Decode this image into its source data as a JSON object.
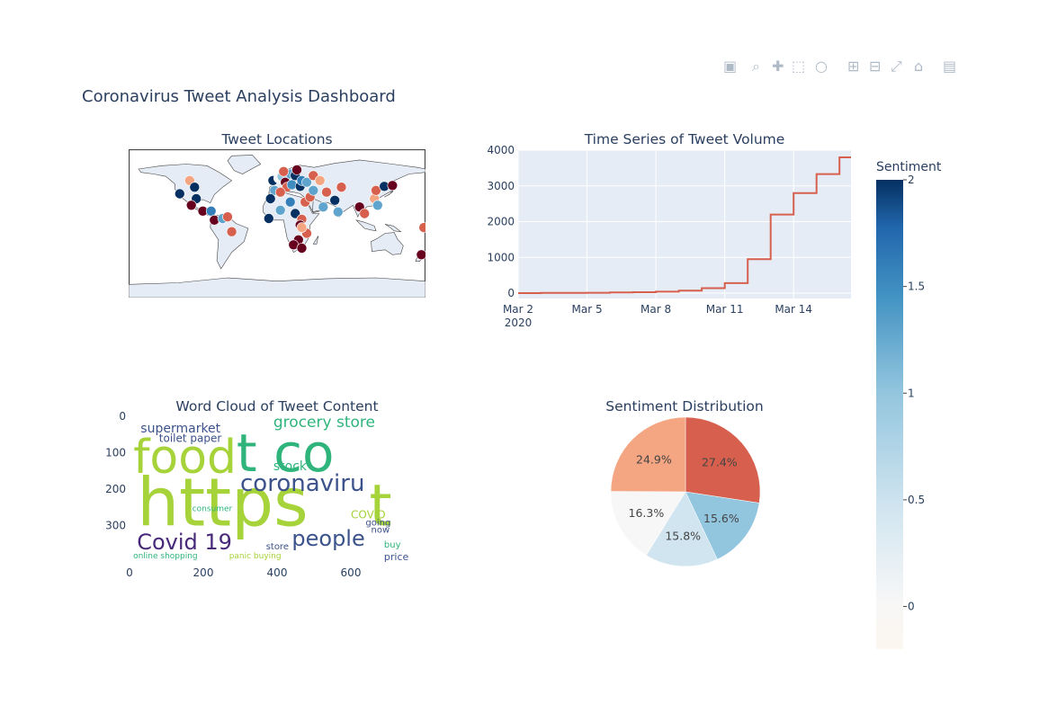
{
  "page_title": "Coronavirus Tweet Analysis Dashboard",
  "modebar": {
    "buttons": [
      "camera-icon",
      "zoom-icon",
      "pan-icon",
      "box-select-icon",
      "lasso-icon",
      "zoom-in-icon",
      "zoom-out-icon",
      "autoscale-icon",
      "reset-axes-icon",
      "plotly-logo-icon"
    ]
  },
  "colors": {
    "dark_red": "#67001f",
    "red": "#d6604d",
    "salmon": "#f4a582",
    "light": "#f7f7f7",
    "light_blue": "#d1e5f0",
    "mid_blue": "#92c5de",
    "blue": "#4393c3",
    "dark_blue": "#053061",
    "plot_bg": "#e5ecf6",
    "line": "#d6604d",
    "land": "#e5ecf6",
    "coast": "#444444"
  },
  "chart_data": [
    {
      "type": "scatter",
      "title": "Tweet Locations",
      "geo": "world",
      "points": [
        {
          "lon": -118,
          "lat": 36,
          "sentiment": 2
        },
        {
          "lon": -106,
          "lat": 52,
          "sentiment": 0.5
        },
        {
          "lon": -100,
          "lat": 44,
          "sentiment": 2
        },
        {
          "lon": -98,
          "lat": 30,
          "sentiment": 2
        },
        {
          "lon": -104,
          "lat": 22,
          "sentiment": 0
        },
        {
          "lon": -90,
          "lat": 15,
          "sentiment": 0
        },
        {
          "lon": -80,
          "lat": 15,
          "sentiment": 1.6
        },
        {
          "lon": -76,
          "lat": 4,
          "sentiment": 0
        },
        {
          "lon": -66,
          "lat": 6,
          "sentiment": 1.3
        },
        {
          "lon": -60,
          "lat": 8,
          "sentiment": 0.3
        },
        {
          "lon": -55,
          "lat": -10,
          "sentiment": 0.2
        },
        {
          "lon": -5,
          "lat": 52,
          "sentiment": 2
        },
        {
          "lon": -3,
          "lat": 40,
          "sentiment": 1.3
        },
        {
          "lon": 2,
          "lat": 55,
          "sentiment": 0.6
        },
        {
          "lon": 6,
          "lat": 57,
          "sentiment": 1
        },
        {
          "lon": 10,
          "lat": 50,
          "sentiment": 0
        },
        {
          "lon": 12,
          "lat": 44,
          "sentiment": 0.3
        },
        {
          "lon": 18,
          "lat": 47,
          "sentiment": 1.5
        },
        {
          "lon": 16,
          "lat": 60,
          "sentiment": 1.3
        },
        {
          "lon": 8,
          "lat": 63,
          "sentiment": 0.3
        },
        {
          "lon": 22,
          "lat": 58,
          "sentiment": 2
        },
        {
          "lon": 24,
          "lat": 65,
          "sentiment": 0
        },
        {
          "lon": 28,
          "lat": 45,
          "sentiment": 2
        },
        {
          "lon": 30,
          "lat": 52,
          "sentiment": 1.6
        },
        {
          "lon": 36,
          "lat": 50,
          "sentiment": 1.3
        },
        {
          "lon": 44,
          "lat": 58,
          "sentiment": 0.3
        },
        {
          "lon": 52,
          "lat": 52,
          "sentiment": 0.4
        },
        {
          "lon": 4,
          "lat": 38,
          "sentiment": 0.3
        },
        {
          "lon": -8,
          "lat": 30,
          "sentiment": 2
        },
        {
          "lon": 4,
          "lat": 16,
          "sentiment": 1.3
        },
        {
          "lon": -10,
          "lat": 6,
          "sentiment": 2
        },
        {
          "lon": 22,
          "lat": 12,
          "sentiment": 2
        },
        {
          "lon": 30,
          "lat": 5,
          "sentiment": 0.3
        },
        {
          "lon": 28,
          "lat": -2,
          "sentiment": 0
        },
        {
          "lon": 36,
          "lat": -12,
          "sentiment": 0.3
        },
        {
          "lon": 26,
          "lat": -20,
          "sentiment": 0
        },
        {
          "lon": 20,
          "lat": -26,
          "sentiment": 0
        },
        {
          "lon": 30,
          "lat": -30,
          "sentiment": 0
        },
        {
          "lon": 30,
          "lat": -5,
          "sentiment": 0.4
        },
        {
          "lon": 16,
          "lat": 26,
          "sentiment": 1.6
        },
        {
          "lon": 34,
          "lat": 26,
          "sentiment": 0.3
        },
        {
          "lon": 40,
          "lat": 32,
          "sentiment": 0.3
        },
        {
          "lon": 44,
          "lat": 40,
          "sentiment": 1.3
        },
        {
          "lon": 56,
          "lat": 20,
          "sentiment": 1.3
        },
        {
          "lon": 70,
          "lat": 28,
          "sentiment": 2
        },
        {
          "lon": 74,
          "lat": 14,
          "sentiment": 1.3
        },
        {
          "lon": 60,
          "lat": 38,
          "sentiment": 0.3
        },
        {
          "lon": 78,
          "lat": 44,
          "sentiment": 0.3
        },
        {
          "lon": 100,
          "lat": 20,
          "sentiment": 0
        },
        {
          "lon": 106,
          "lat": 12,
          "sentiment": 0.3
        },
        {
          "lon": 118,
          "lat": 30,
          "sentiment": 0.4
        },
        {
          "lon": 120,
          "lat": 40,
          "sentiment": 0.3
        },
        {
          "lon": 130,
          "lat": 45,
          "sentiment": 2
        },
        {
          "lon": 140,
          "lat": 46,
          "sentiment": 0
        },
        {
          "lon": 122,
          "lat": 22,
          "sentiment": 1.3
        },
        {
          "lon": 178,
          "lat": -5,
          "sentiment": 0.3
        },
        {
          "lon": 175,
          "lat": -38,
          "sentiment": 0
        }
      ]
    },
    {
      "type": "line",
      "title": "Time Series of Tweet Volume",
      "x_ticks": [
        "Mar 2",
        "Mar 5",
        "Mar 8",
        "Mar 11",
        "Mar 14"
      ],
      "x_year_label": "2020",
      "x_range": [
        "2020-03-02",
        "2020-03-16 12:00"
      ],
      "ylim": [
        -150,
        4000
      ],
      "y_ticks": [
        0,
        1000,
        2000,
        3000,
        4000
      ],
      "x": [
        "2020-03-02",
        "2020-03-03",
        "2020-03-04",
        "2020-03-05",
        "2020-03-06",
        "2020-03-07",
        "2020-03-08",
        "2020-03-09",
        "2020-03-10",
        "2020-03-11",
        "2020-03-12",
        "2020-03-13",
        "2020-03-14",
        "2020-03-15",
        "2020-03-16"
      ],
      "values": [
        2,
        5,
        8,
        12,
        18,
        25,
        40,
        70,
        140,
        280,
        950,
        2200,
        2800,
        3330,
        3800
      ],
      "line_shape": "hv",
      "grid": true
    },
    {
      "type": "heatmap",
      "title": "Word Cloud of Tweet Content",
      "x_ticks": [
        0,
        200,
        400,
        600
      ],
      "y_ticks": [
        0,
        100,
        200,
        300
      ],
      "x_range": [
        0,
        800
      ],
      "y_range": [
        0,
        400
      ],
      "words": [
        {
          "text": "https",
          "size": 1.0,
          "color": "#a6d23a"
        },
        {
          "text": "t co",
          "size": 0.95,
          "color": "#2fb47c"
        },
        {
          "text": "food",
          "size": 0.75,
          "color": "#a6d23a"
        },
        {
          "text": "t",
          "size": 0.9,
          "color": "#a6d23a"
        },
        {
          "text": "coronaviru",
          "size": 0.45,
          "color": "#3b528b"
        },
        {
          "text": "Covid 19",
          "size": 0.4,
          "color": "#482878"
        },
        {
          "text": "people",
          "size": 0.4,
          "color": "#3b528b"
        },
        {
          "text": "grocery store",
          "size": 0.3,
          "color": "#2fb47c"
        },
        {
          "text": "supermarket",
          "size": 0.25,
          "color": "#3b528b"
        },
        {
          "text": "stock",
          "size": 0.25,
          "color": "#2fb47c"
        },
        {
          "text": "toilet paper",
          "size": 0.18,
          "color": "#3b528b"
        },
        {
          "text": "COVID",
          "size": 0.2,
          "color": "#a6d23a"
        },
        {
          "text": "price",
          "size": 0.15,
          "color": "#3b528b"
        },
        {
          "text": "online shopping",
          "size": 0.12,
          "color": "#2fb47c"
        },
        {
          "text": "panic buying",
          "size": 0.1,
          "color": "#a6d23a"
        },
        {
          "text": "going",
          "size": 0.12,
          "color": "#3b528b"
        },
        {
          "text": "consumer",
          "size": 0.1,
          "color": "#2fb47c"
        },
        {
          "text": "store",
          "size": 0.12,
          "color": "#3b528b"
        },
        {
          "text": "now",
          "size": 0.12,
          "color": "#3b528b"
        },
        {
          "text": "buy",
          "size": 0.12,
          "color": "#2fb47c"
        }
      ]
    },
    {
      "type": "pie",
      "title": "Sentiment Distribution",
      "slices": [
        {
          "label": "27.4%",
          "value": 27.4,
          "color": "#d6604d"
        },
        {
          "label": "15.6%",
          "value": 15.6,
          "color": "#92c5de"
        },
        {
          "label": "15.8%",
          "value": 15.8,
          "color": "#d1e5f0"
        },
        {
          "label": "16.3%",
          "value": 16.3,
          "color": "#f7f7f7"
        },
        {
          "label": "24.9%",
          "value": 24.9,
          "color": "#f4a582"
        }
      ]
    }
  ],
  "colorbar": {
    "title": "Sentiment",
    "range": [
      -0.2,
      2
    ],
    "ticks": [
      "0",
      "0.5",
      "1",
      "1.5",
      "2"
    ],
    "tick_values": [
      0,
      0.5,
      1,
      1.5,
      2
    ]
  }
}
